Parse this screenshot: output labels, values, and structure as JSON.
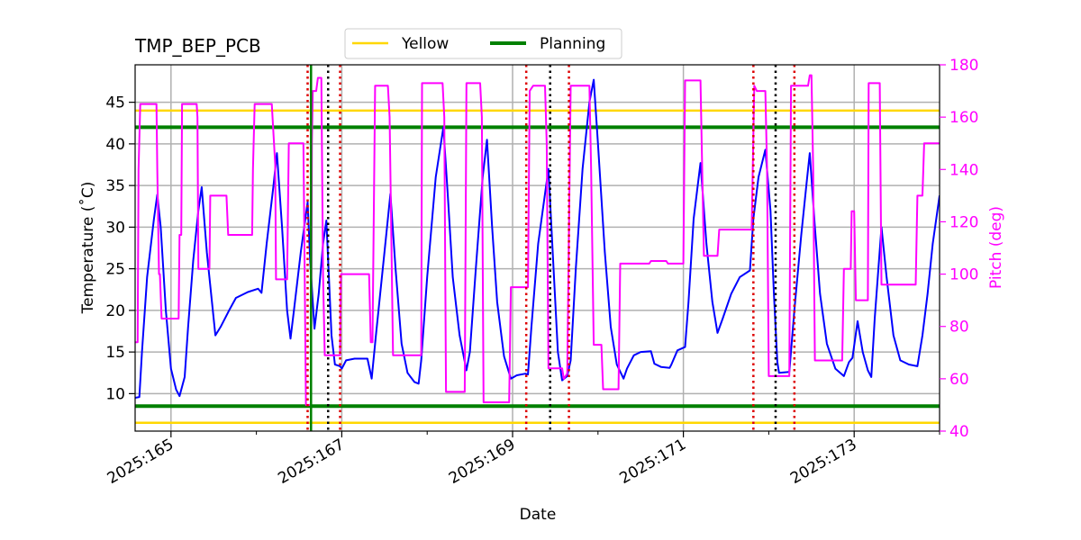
{
  "chart_data": {
    "type": "line",
    "title": "TMP_BEP_PCB",
    "xlabel": "Date",
    "ylabel": "Temperature (˚C)",
    "y2label": "Pitch (deg)",
    "xlim": [
      164.58,
      174.0
    ],
    "ylim": [
      5.5,
      49.5
    ],
    "y2lim": [
      40,
      180
    ],
    "x_ticks": [
      {
        "value": 165,
        "label": "2025:165"
      },
      {
        "value": 167,
        "label": "2025:167"
      },
      {
        "value": 169,
        "label": "2025:169"
      },
      {
        "value": 171,
        "label": "2025:171"
      },
      {
        "value": 173,
        "label": "2025:173"
      }
    ],
    "y_ticks": [
      {
        "value": 10,
        "label": "10"
      },
      {
        "value": 15,
        "label": "15"
      },
      {
        "value": 20,
        "label": "20"
      },
      {
        "value": 25,
        "label": "25"
      },
      {
        "value": 30,
        "label": "30"
      },
      {
        "value": 35,
        "label": "35"
      },
      {
        "value": 40,
        "label": "40"
      },
      {
        "value": 45,
        "label": "45"
      }
    ],
    "y2_ticks": [
      {
        "value": 40,
        "label": "40"
      },
      {
        "value": 60,
        "label": "60"
      },
      {
        "value": 80,
        "label": "80"
      },
      {
        "value": 100,
        "label": "100"
      },
      {
        "value": 120,
        "label": "120"
      },
      {
        "value": 140,
        "label": "140"
      },
      {
        "value": 160,
        "label": "160"
      },
      {
        "value": 180,
        "label": "180"
      }
    ],
    "grid": true,
    "legend": {
      "placement": "top-center",
      "entries": [
        {
          "label": "Yellow",
          "color": "#ffd700"
        },
        {
          "label": "Planning",
          "color": "#008000"
        }
      ]
    },
    "limit_lines": [
      {
        "legend": "Yellow",
        "value": 44.0,
        "color": "#ffd700"
      },
      {
        "legend": "Yellow",
        "value": 6.5,
        "color": "#ffd700"
      },
      {
        "legend": "Planning",
        "value": 42.0,
        "color": "#008000"
      },
      {
        "legend": "Planning",
        "value": 8.5,
        "color": "#008000"
      }
    ],
    "green_vertical": [
      166.64
    ],
    "red_dotted_lines": [
      166.6,
      166.98,
      169.16,
      169.66,
      171.82,
      172.3
    ],
    "black_dotted_lines": [
      166.84,
      169.44,
      172.08
    ],
    "series": [
      {
        "axis": "left",
        "color": "#0000ff",
        "points": [
          [
            164.58,
            9.5
          ],
          [
            164.63,
            9.6
          ],
          [
            164.66,
            15
          ],
          [
            164.72,
            24
          ],
          [
            164.8,
            31
          ],
          [
            164.84,
            33.9
          ],
          [
            164.88,
            30
          ],
          [
            164.94,
            20
          ],
          [
            165.0,
            13
          ],
          [
            165.06,
            10.5
          ],
          [
            165.1,
            9.7
          ],
          [
            165.16,
            12
          ],
          [
            165.2,
            18
          ],
          [
            165.26,
            26
          ],
          [
            165.32,
            32
          ],
          [
            165.36,
            34.8
          ],
          [
            165.42,
            27
          ],
          [
            165.48,
            21
          ],
          [
            165.52,
            17
          ],
          [
            165.58,
            18
          ],
          [
            165.68,
            20
          ],
          [
            165.76,
            21.5
          ],
          [
            165.9,
            22.2
          ],
          [
            166.02,
            22.6
          ],
          [
            166.06,
            22.1
          ],
          [
            166.12,
            28
          ],
          [
            166.2,
            35
          ],
          [
            166.24,
            38.9
          ],
          [
            166.3,
            30
          ],
          [
            166.36,
            20
          ],
          [
            166.4,
            16.6
          ],
          [
            166.44,
            20
          ],
          [
            166.52,
            27
          ],
          [
            166.6,
            33
          ],
          [
            166.63,
            26
          ],
          [
            166.66,
            21
          ],
          [
            166.68,
            17.8
          ],
          [
            166.73,
            22
          ],
          [
            166.78,
            28
          ],
          [
            166.82,
            30.8
          ],
          [
            166.88,
            17
          ],
          [
            166.92,
            13.5
          ],
          [
            166.98,
            13.3
          ],
          [
            167.0,
            13
          ],
          [
            167.05,
            14
          ],
          [
            167.15,
            14.2
          ],
          [
            167.3,
            14.2
          ],
          [
            167.35,
            11.8
          ],
          [
            167.4,
            17
          ],
          [
            167.5,
            27
          ],
          [
            167.57,
            34
          ],
          [
            167.63,
            25
          ],
          [
            167.7,
            16
          ],
          [
            167.77,
            12.5
          ],
          [
            167.85,
            11.4
          ],
          [
            167.9,
            11.2
          ],
          [
            167.93,
            14
          ],
          [
            168.0,
            24
          ],
          [
            168.1,
            36
          ],
          [
            168.19,
            42
          ],
          [
            168.24,
            34
          ],
          [
            168.3,
            24
          ],
          [
            168.38,
            17
          ],
          [
            168.46,
            12.8
          ],
          [
            168.5,
            15
          ],
          [
            168.57,
            25
          ],
          [
            168.65,
            36
          ],
          [
            168.7,
            40.5
          ],
          [
            168.76,
            30
          ],
          [
            168.82,
            21
          ],
          [
            168.9,
            14.5
          ],
          [
            168.98,
            11.8
          ],
          [
            169.05,
            12.2
          ],
          [
            169.15,
            12.4
          ],
          [
            169.18,
            12.3
          ],
          [
            169.22,
            18
          ],
          [
            169.3,
            28
          ],
          [
            169.38,
            34
          ],
          [
            169.42,
            37
          ],
          [
            169.48,
            25
          ],
          [
            169.53,
            15
          ],
          [
            169.58,
            11.6
          ],
          [
            169.64,
            12.1
          ],
          [
            169.68,
            14
          ],
          [
            169.74,
            25
          ],
          [
            169.82,
            37
          ],
          [
            169.9,
            45
          ],
          [
            169.95,
            47.7
          ],
          [
            170.0,
            40
          ],
          [
            170.08,
            27
          ],
          [
            170.15,
            18
          ],
          [
            170.22,
            13.5
          ],
          [
            170.3,
            11.8
          ],
          [
            170.34,
            13
          ],
          [
            170.42,
            14.6
          ],
          [
            170.5,
            15
          ],
          [
            170.62,
            15.1
          ],
          [
            170.66,
            13.6
          ],
          [
            170.74,
            13.2
          ],
          [
            170.84,
            13.1
          ],
          [
            170.86,
            13.5
          ],
          [
            170.93,
            15.2
          ],
          [
            171.02,
            15.6
          ],
          [
            171.06,
            21
          ],
          [
            171.12,
            31
          ],
          [
            171.2,
            37.7
          ],
          [
            171.27,
            28
          ],
          [
            171.34,
            21
          ],
          [
            171.4,
            17.3
          ],
          [
            171.46,
            19
          ],
          [
            171.56,
            22
          ],
          [
            171.66,
            24
          ],
          [
            171.78,
            24.8
          ],
          [
            171.82,
            31
          ],
          [
            171.88,
            36
          ],
          [
            171.96,
            39.3
          ],
          [
            172.02,
            32
          ],
          [
            172.06,
            22
          ],
          [
            172.1,
            13.8
          ],
          [
            172.12,
            12.5
          ],
          [
            172.24,
            12.6
          ],
          [
            172.3,
            20
          ],
          [
            172.38,
            29
          ],
          [
            172.44,
            35
          ],
          [
            172.48,
            38.9
          ],
          [
            172.54,
            30
          ],
          [
            172.6,
            22
          ],
          [
            172.68,
            16
          ],
          [
            172.78,
            13
          ],
          [
            172.88,
            12.1
          ],
          [
            172.94,
            13.8
          ],
          [
            172.98,
            14.3
          ],
          [
            173.04,
            18.7
          ],
          [
            173.1,
            15
          ],
          [
            173.16,
            12.8
          ],
          [
            173.2,
            12
          ],
          [
            173.24,
            19
          ],
          [
            173.32,
            30
          ],
          [
            173.38,
            24
          ],
          [
            173.46,
            17
          ],
          [
            173.54,
            14
          ],
          [
            173.64,
            13.5
          ],
          [
            173.74,
            13.3
          ],
          [
            173.8,
            17
          ],
          [
            173.86,
            22
          ],
          [
            173.92,
            28
          ],
          [
            174.0,
            33.8
          ]
        ]
      },
      {
        "axis": "right",
        "color": "#ff00ff",
        "points": [
          [
            164.58,
            74
          ],
          [
            164.61,
            74
          ],
          [
            164.62,
            140
          ],
          [
            164.64,
            165
          ],
          [
            164.83,
            165
          ],
          [
            164.84,
            140
          ],
          [
            164.86,
            100
          ],
          [
            164.87,
            100
          ],
          [
            164.89,
            83
          ],
          [
            165.09,
            83
          ],
          [
            165.1,
            115
          ],
          [
            165.12,
            115
          ],
          [
            165.13,
            165
          ],
          [
            165.3,
            165
          ],
          [
            165.31,
            160
          ],
          [
            165.32,
            102
          ],
          [
            165.45,
            102
          ],
          [
            165.46,
            130
          ],
          [
            165.65,
            130
          ],
          [
            165.67,
            115
          ],
          [
            165.95,
            115
          ],
          [
            165.96,
            140
          ],
          [
            165.98,
            165
          ],
          [
            166.18,
            165
          ],
          [
            166.22,
            142
          ],
          [
            166.23,
            98
          ],
          [
            166.36,
            98
          ],
          [
            166.38,
            150
          ],
          [
            166.55,
            150
          ],
          [
            166.56,
            120
          ],
          [
            166.58,
            50
          ],
          [
            166.64,
            50
          ],
          [
            166.65,
            150
          ],
          [
            166.66,
            170
          ],
          [
            166.7,
            170
          ],
          [
            166.72,
            175
          ],
          [
            166.76,
            175
          ],
          [
            166.78,
            100
          ],
          [
            166.8,
            69
          ],
          [
            166.98,
            69
          ],
          [
            166.99,
            100
          ],
          [
            167.32,
            100
          ],
          [
            167.34,
            74
          ],
          [
            167.36,
            74
          ],
          [
            167.39,
            172
          ],
          [
            167.54,
            172
          ],
          [
            167.56,
            160
          ],
          [
            167.6,
            69
          ],
          [
            167.93,
            69
          ],
          [
            167.94,
            173
          ],
          [
            168.18,
            173
          ],
          [
            168.2,
            160
          ],
          [
            168.22,
            55
          ],
          [
            168.44,
            55
          ],
          [
            168.46,
            173
          ],
          [
            168.62,
            173
          ],
          [
            168.64,
            160
          ],
          [
            168.66,
            51
          ],
          [
            168.96,
            51
          ],
          [
            168.98,
            95
          ],
          [
            169.18,
            95
          ],
          [
            169.2,
            170
          ],
          [
            169.24,
            172
          ],
          [
            169.38,
            172
          ],
          [
            169.4,
            150
          ],
          [
            169.42,
            64
          ],
          [
            169.58,
            64
          ],
          [
            169.6,
            60
          ],
          [
            169.64,
            62
          ],
          [
            169.68,
            172
          ],
          [
            169.9,
            172
          ],
          [
            169.92,
            140
          ],
          [
            169.95,
            73
          ],
          [
            170.04,
            73
          ],
          [
            170.06,
            56
          ],
          [
            170.24,
            56
          ],
          [
            170.26,
            104
          ],
          [
            170.6,
            104
          ],
          [
            170.62,
            105
          ],
          [
            170.8,
            105
          ],
          [
            170.82,
            104
          ],
          [
            171.0,
            104
          ],
          [
            171.02,
            174
          ],
          [
            171.2,
            174
          ],
          [
            171.22,
            140
          ],
          [
            171.24,
            107
          ],
          [
            171.4,
            107
          ],
          [
            171.42,
            117
          ],
          [
            171.8,
            117
          ],
          [
            171.83,
            172
          ],
          [
            171.86,
            170
          ],
          [
            171.96,
            170
          ],
          [
            171.98,
            140
          ],
          [
            172.0,
            61
          ],
          [
            172.24,
            61
          ],
          [
            172.26,
            172
          ],
          [
            172.46,
            172
          ],
          [
            172.48,
            176
          ],
          [
            172.5,
            176
          ],
          [
            172.52,
            140
          ],
          [
            172.54,
            67
          ],
          [
            172.86,
            67
          ],
          [
            172.88,
            102
          ],
          [
            172.96,
            102
          ],
          [
            172.97,
            124
          ],
          [
            173.0,
            124
          ],
          [
            173.02,
            90
          ],
          [
            173.16,
            90
          ],
          [
            173.17,
            173
          ],
          [
            173.3,
            173
          ],
          [
            173.32,
            96
          ],
          [
            173.72,
            96
          ],
          [
            173.74,
            130
          ],
          [
            173.8,
            130
          ],
          [
            173.82,
            150
          ],
          [
            174.0,
            150
          ]
        ]
      }
    ]
  }
}
